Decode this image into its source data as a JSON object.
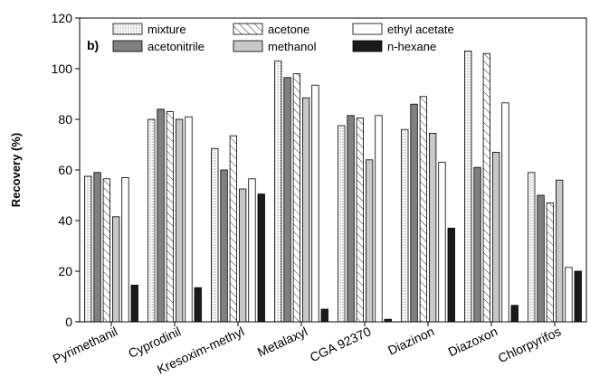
{
  "chart_data": {
    "type": "bar",
    "panel_label": "b)",
    "ylabel": "Recovery (%)",
    "xlabel": "",
    "ylim": [
      0,
      120
    ],
    "yticks": [
      0,
      20,
      40,
      60,
      80,
      100,
      120
    ],
    "grid": false,
    "legend_position": "top-left",
    "categories": [
      "Pyrimethanil",
      "Cyprodinil",
      "Kresoxim-methyl",
      "Metalaxyl",
      "CGA 92370",
      "Diazinon",
      "Diazoxon",
      "Chlorpyrifos"
    ],
    "series": [
      {
        "name": "mixture",
        "pattern": "dots",
        "color": "#ffffff",
        "values": [
          57.5,
          80,
          68.5,
          103,
          77.5,
          76,
          107,
          59
        ]
      },
      {
        "name": "acetonitrile",
        "pattern": "solid",
        "color": "#808080",
        "values": [
          59,
          84,
          60,
          96.5,
          81.5,
          86,
          61,
          50
        ]
      },
      {
        "name": "acetone",
        "pattern": "hatch",
        "color": "#ffffff",
        "values": [
          56.5,
          83,
          73.5,
          98,
          80.5,
          89,
          106,
          47
        ]
      },
      {
        "name": "methanol",
        "pattern": "solid",
        "color": "#c8c8c8",
        "values": [
          41.5,
          80,
          52.5,
          88.5,
          64,
          74.5,
          67,
          56
        ]
      },
      {
        "name": "ethyl acetate",
        "pattern": "solid",
        "color": "#ffffff",
        "values": [
          57,
          81,
          56.5,
          93.5,
          81.5,
          63,
          86.5,
          21.5
        ]
      },
      {
        "name": "n-hexane",
        "pattern": "solid",
        "color": "#1a1a1a",
        "values": [
          14.5,
          13.5,
          50.5,
          5,
          1,
          37,
          6.5,
          20
        ]
      }
    ]
  }
}
